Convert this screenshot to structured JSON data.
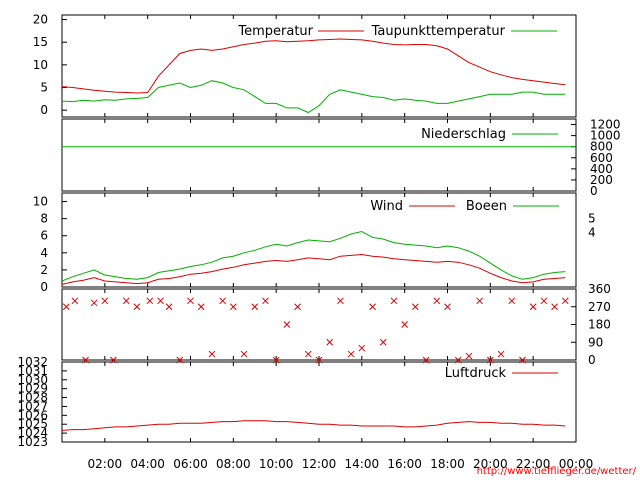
{
  "source_url": "http://www.tiefflieger.de/wetter/",
  "colors": {
    "red": "#dd0000",
    "green": "#00b000",
    "axis": "#000000"
  },
  "chart_data": [
    {
      "type": "line",
      "x_ticks": [
        "02:00",
        "04:00",
        "06:00",
        "08:00",
        "10:00",
        "12:00",
        "14:00",
        "16:00",
        "18:00",
        "20:00",
        "22:00",
        "00:00"
      ],
      "x": [
        0,
        0.5,
        1,
        1.5,
        2,
        2.5,
        3,
        3.5,
        4,
        4.5,
        5,
        5.5,
        6,
        6.5,
        7,
        7.5,
        8,
        8.5,
        9,
        9.5,
        10,
        10.5,
        11,
        11.5,
        12,
        12.5,
        13,
        13.5,
        14,
        14.5,
        15,
        15.5,
        16,
        16.5,
        17,
        17.5,
        18,
        18.5,
        19,
        19.5,
        20,
        20.5,
        21,
        21.5,
        22,
        22.5,
        23,
        23.5
      ],
      "y_ticks": [
        0,
        5,
        10,
        15,
        20
      ],
      "ylim": [
        -1.5,
        21
      ],
      "series": [
        {
          "name": "Temperatur",
          "color": "#dd0000",
          "values": [
            5.2,
            5.0,
            4.7,
            4.4,
            4.2,
            4.0,
            3.9,
            3.8,
            3.9,
            7.5,
            10,
            12.5,
            13.2,
            13.5,
            13.2,
            13.5,
            14,
            14.5,
            14.8,
            15.2,
            15.3,
            15.1,
            15.2,
            15.3,
            15.5,
            15.6,
            15.7,
            15.6,
            15.5,
            15.2,
            14.8,
            14.5,
            14.4,
            14.5,
            14.5,
            14.2,
            13.5,
            12,
            10.5,
            9.5,
            8.5,
            7.8,
            7.2,
            6.8,
            6.5,
            6.2,
            5.9,
            5.6
          ]
        },
        {
          "name": "Taupunkttemperatur",
          "color": "#00b000",
          "values": [
            2.0,
            1.9,
            2.2,
            2.0,
            2.3,
            2.2,
            2.5,
            2.6,
            2.8,
            5,
            5.5,
            6,
            5,
            5.5,
            6.5,
            6,
            5,
            4.5,
            3,
            1.5,
            1.5,
            0.5,
            0.5,
            -0.5,
            1,
            3.5,
            4.5,
            4,
            3.5,
            3,
            2.8,
            2.2,
            2.5,
            2.2,
            2.0,
            1.5,
            1.5,
            2,
            2.5,
            3,
            3.5,
            3.5,
            3.5,
            4,
            4,
            3.5,
            3.5,
            3.5
          ]
        }
      ]
    },
    {
      "type": "line",
      "y_ticks": [
        0,
        200,
        400,
        600,
        800,
        1000,
        1200
      ],
      "ylim": [
        0,
        1300
      ],
      "series": [
        {
          "name": "Niederschlag",
          "color": "#00b000",
          "values": [
            0,
            0,
            0,
            0,
            0,
            0,
            0,
            0,
            0,
            0,
            0,
            0,
            0,
            0,
            0,
            0,
            0,
            0,
            0,
            0,
            0,
            0,
            0,
            0,
            0,
            0,
            0,
            0,
            0,
            0,
            0,
            0,
            0,
            0,
            0,
            0,
            0,
            0,
            0,
            0,
            0,
            0,
            0,
            0,
            0,
            0,
            0,
            0
          ]
        }
      ]
    },
    {
      "type": "line",
      "y_ticks": [
        0,
        2,
        4,
        6,
        8,
        10
      ],
      "ylim": [
        0,
        11
      ],
      "right_ticks": [
        4,
        5
      ],
      "series": [
        {
          "name": "Wind",
          "color": "#dd0000",
          "values": [
            0.3,
            0.6,
            0.8,
            1.1,
            0.7,
            0.6,
            0.5,
            0.4,
            0.5,
            0.9,
            1.0,
            1.2,
            1.5,
            1.6,
            1.8,
            2.1,
            2.3,
            2.6,
            2.8,
            3.0,
            3.1,
            3.0,
            3.2,
            3.4,
            3.3,
            3.2,
            3.6,
            3.7,
            3.8,
            3.6,
            3.5,
            3.3,
            3.2,
            3.1,
            3.0,
            2.9,
            3.0,
            2.9,
            2.6,
            2.2,
            1.6,
            1.1,
            0.7,
            0.5,
            0.6,
            0.9,
            1.0,
            1.1
          ]
        },
        {
          "name": "Boeen",
          "color": "#00b000",
          "values": [
            0.7,
            1.2,
            1.6,
            2.0,
            1.4,
            1.2,
            1.0,
            0.9,
            1.1,
            1.7,
            1.9,
            2.1,
            2.4,
            2.6,
            2.9,
            3.4,
            3.6,
            4.0,
            4.3,
            4.7,
            5.0,
            4.8,
            5.2,
            5.5,
            5.4,
            5.3,
            5.7,
            6.2,
            6.5,
            5.8,
            5.6,
            5.2,
            5.0,
            4.9,
            4.8,
            4.6,
            4.8,
            4.6,
            4.2,
            3.6,
            2.8,
            2.0,
            1.3,
            0.9,
            1.1,
            1.5,
            1.7,
            1.8
          ]
        }
      ]
    },
    {
      "type": "scatter",
      "ylabel_ticks": [
        0,
        90,
        180,
        270,
        360
      ],
      "ylim": [
        0,
        360
      ],
      "series": [
        {
          "name": "Windrichtung",
          "color": "#dd0000",
          "x": [
            0.2,
            0.6,
            1.1,
            1.5,
            2.0,
            2.4,
            3.0,
            3.5,
            4.1,
            4.6,
            5.0,
            5.5,
            6.0,
            6.5,
            7.0,
            7.5,
            8.0,
            8.5,
            9.0,
            9.5,
            10.0,
            10.5,
            11.0,
            11.5,
            12.0,
            12.5,
            13.0,
            13.5,
            14.0,
            14.5,
            15.0,
            15.5,
            16.0,
            16.5,
            17.0,
            17.5,
            18.0,
            18.5,
            19.0,
            19.5,
            20.0,
            20.5,
            21.0,
            21.5,
            22.0,
            22.5,
            23.0,
            23.5
          ],
          "values": [
            270,
            300,
            0,
            290,
            300,
            0,
            300,
            270,
            300,
            300,
            270,
            0,
            300,
            270,
            30,
            300,
            270,
            30,
            270,
            300,
            0,
            180,
            270,
            30,
            0,
            90,
            300,
            30,
            60,
            270,
            90,
            300,
            180,
            270,
            0,
            300,
            270,
            0,
            20,
            300,
            0,
            30,
            300,
            0,
            270,
            300,
            270,
            300
          ]
        }
      ]
    },
    {
      "type": "line",
      "y_ticks": [
        1023,
        1024,
        1025,
        1026,
        1027,
        1028,
        1029,
        1030,
        1031,
        1032
      ],
      "ylim": [
        1023,
        1032
      ],
      "series": [
        {
          "name": "Luftdruck",
          "color": "#dd0000",
          "values": [
            1024.3,
            1024.4,
            1024.4,
            1024.5,
            1024.6,
            1024.7,
            1024.7,
            1024.8,
            1024.9,
            1025.0,
            1025.0,
            1025.1,
            1025.1,
            1025.1,
            1025.2,
            1025.3,
            1025.3,
            1025.4,
            1025.4,
            1025.4,
            1025.3,
            1025.3,
            1025.2,
            1025.1,
            1025.0,
            1025.0,
            1024.9,
            1024.9,
            1024.8,
            1024.8,
            1024.8,
            1024.8,
            1024.7,
            1024.7,
            1024.8,
            1024.9,
            1025.1,
            1025.2,
            1025.3,
            1025.2,
            1025.2,
            1025.1,
            1025.1,
            1025.0,
            1025.0,
            1024.9,
            1024.9,
            1024.8
          ]
        }
      ]
    }
  ]
}
